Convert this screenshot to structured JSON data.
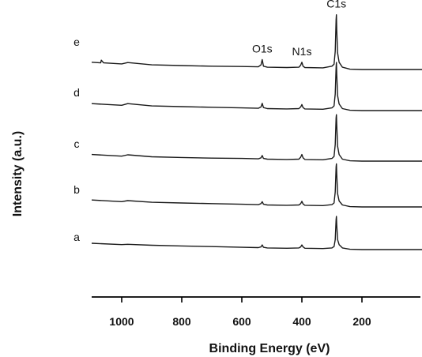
{
  "chart_data": {
    "type": "line",
    "title": "",
    "xlabel": "Binding Energy (eV)",
    "ylabel": "Intensity (a.u.)",
    "xlim": [
      1100,
      0
    ],
    "x_reversed": true,
    "x_ticks": [
      1000,
      800,
      600,
      400,
      200
    ],
    "x_tick_labels": [
      "1000",
      "800",
      "600",
      "400",
      "200"
    ],
    "grid": false,
    "legend": "none",
    "peak_labels": [
      {
        "text": "O1s",
        "x": 532
      },
      {
        "text": "N1s",
        "x": 400
      },
      {
        "text": "C1s",
        "x": 285
      }
    ],
    "series": [
      {
        "name": "a",
        "x": [
          1100,
          1000,
          980,
          900,
          800,
          700,
          600,
          545,
          536,
          532,
          528,
          515,
          450,
          410,
          404,
          400,
          396,
          390,
          330,
          300,
          293,
          289,
          286,
          285,
          284,
          281,
          276,
          265,
          240,
          200,
          150,
          100,
          50,
          0
        ],
        "values": [
          0.19,
          0.15,
          0.16,
          0.13,
          0.11,
          0.09,
          0.07,
          0.06,
          0.08,
          0.14,
          0.07,
          0.05,
          0.04,
          0.05,
          0.08,
          0.14,
          0.08,
          0.04,
          0.03,
          0.05,
          0.09,
          0.3,
          0.9,
          1.0,
          0.75,
          0.3,
          0.15,
          0.05,
          0.01,
          0.0,
          0.0,
          0.0,
          0.0,
          0.0
        ]
      },
      {
        "name": "b",
        "x": [
          1100,
          1000,
          980,
          900,
          800,
          700,
          600,
          545,
          536,
          532,
          528,
          515,
          450,
          410,
          404,
          400,
          396,
          390,
          330,
          300,
          293,
          289,
          286,
          285,
          284,
          281,
          276,
          265,
          240,
          200,
          150,
          100,
          50,
          0
        ],
        "values": [
          0.21,
          0.16,
          0.19,
          0.14,
          0.12,
          0.1,
          0.08,
          0.07,
          0.1,
          0.16,
          0.08,
          0.06,
          0.05,
          0.06,
          0.1,
          0.17,
          0.09,
          0.05,
          0.04,
          0.07,
          0.12,
          0.45,
          1.2,
          1.3,
          1.0,
          0.4,
          0.18,
          0.06,
          0.01,
          0.0,
          0.0,
          0.0,
          0.0,
          0.0
        ]
      },
      {
        "name": "c",
        "x": [
          1100,
          1000,
          980,
          900,
          800,
          700,
          600,
          545,
          536,
          532,
          528,
          515,
          450,
          410,
          404,
          400,
          396,
          390,
          330,
          300,
          293,
          289,
          286,
          285,
          284,
          281,
          276,
          265,
          240,
          200,
          150,
          100,
          50,
          0
        ],
        "values": [
          0.2,
          0.15,
          0.19,
          0.13,
          0.11,
          0.09,
          0.08,
          0.07,
          0.1,
          0.17,
          0.08,
          0.06,
          0.05,
          0.06,
          0.12,
          0.2,
          0.1,
          0.05,
          0.04,
          0.08,
          0.14,
          0.5,
          1.3,
          1.4,
          1.1,
          0.45,
          0.2,
          0.06,
          0.01,
          0.0,
          0.0,
          0.0,
          0.0,
          0.0
        ]
      },
      {
        "name": "d",
        "x": [
          1100,
          1000,
          980,
          900,
          800,
          700,
          600,
          545,
          536,
          532,
          528,
          515,
          450,
          410,
          404,
          400,
          396,
          390,
          330,
          300,
          293,
          289,
          286,
          285,
          284,
          281,
          276,
          265,
          240,
          200,
          150,
          100,
          50,
          0
        ],
        "values": [
          0.21,
          0.16,
          0.21,
          0.14,
          0.12,
          0.1,
          0.08,
          0.07,
          0.11,
          0.22,
          0.09,
          0.06,
          0.05,
          0.06,
          0.11,
          0.18,
          0.09,
          0.05,
          0.04,
          0.08,
          0.14,
          0.5,
          1.3,
          1.45,
          1.1,
          0.45,
          0.2,
          0.06,
          0.01,
          0.0,
          0.0,
          0.0,
          0.0,
          0.0
        ]
      },
      {
        "name": "e",
        "x": [
          1100,
          1070,
          1068,
          1060,
          1000,
          980,
          900,
          800,
          700,
          600,
          545,
          536,
          532,
          528,
          515,
          450,
          410,
          404,
          400,
          396,
          390,
          330,
          300,
          293,
          289,
          286,
          285,
          284,
          281,
          276,
          265,
          240,
          200,
          150,
          100,
          50,
          0
        ],
        "values": [
          0.22,
          0.2,
          0.28,
          0.2,
          0.17,
          0.21,
          0.14,
          0.12,
          0.1,
          0.09,
          0.08,
          0.14,
          0.3,
          0.1,
          0.07,
          0.06,
          0.07,
          0.13,
          0.22,
          0.1,
          0.06,
          0.05,
          0.1,
          0.16,
          0.55,
          1.5,
          1.65,
          1.2,
          0.5,
          0.22,
          0.07,
          0.01,
          0.0,
          0.0,
          0.0,
          0.0,
          0.0
        ]
      }
    ]
  }
}
